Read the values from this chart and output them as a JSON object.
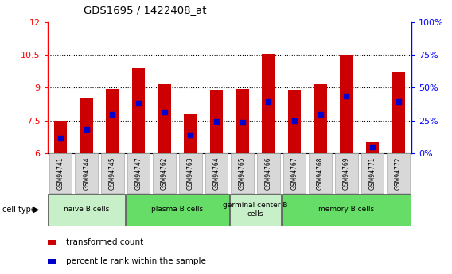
{
  "title": "GDS1695 / 1422408_at",
  "samples": [
    "GSM94741",
    "GSM94744",
    "GSM94745",
    "GSM94747",
    "GSM94762",
    "GSM94763",
    "GSM94764",
    "GSM94765",
    "GSM94766",
    "GSM94767",
    "GSM94768",
    "GSM94769",
    "GSM94771",
    "GSM94772"
  ],
  "bar_heights": [
    7.5,
    8.5,
    8.95,
    9.9,
    9.15,
    7.8,
    8.9,
    8.95,
    10.55,
    8.9,
    9.15,
    10.5,
    6.5,
    9.7
  ],
  "percentile_values": [
    6.7,
    7.1,
    7.8,
    8.3,
    7.9,
    6.85,
    7.45,
    7.42,
    8.35,
    7.5,
    7.8,
    8.6,
    6.3,
    8.35
  ],
  "bar_color": "#cc0000",
  "dot_color": "#0000cc",
  "bar_bottom": 6.0,
  "ylim_left": [
    6,
    12
  ],
  "ylim_right": [
    0,
    100
  ],
  "yticks_left": [
    6,
    7.5,
    9,
    10.5,
    12
  ],
  "yticks_right": [
    0,
    25,
    50,
    75,
    100
  ],
  "ytick_labels_left": [
    "6",
    "7.5",
    "9",
    "10.5",
    "12"
  ],
  "ytick_labels_right": [
    "0%",
    "25%",
    "50%",
    "75%",
    "100%"
  ],
  "dotted_lines": [
    7.5,
    9.0,
    10.5
  ],
  "groups": [
    {
      "label": "naive B cells",
      "start": 0,
      "end": 2,
      "color": "#c8f0c8"
    },
    {
      "label": "plasma B cells",
      "start": 3,
      "end": 6,
      "color": "#66dd66"
    },
    {
      "label": "germinal center B\ncells",
      "start": 7,
      "end": 8,
      "color": "#c8f0c8"
    },
    {
      "label": "memory B cells",
      "start": 9,
      "end": 13,
      "color": "#66dd66"
    }
  ],
  "cell_type_label": "cell type",
  "legend_items": [
    {
      "color": "#cc0000",
      "label": "transformed count"
    },
    {
      "color": "#0000cc",
      "label": "percentile rank within the sample"
    }
  ],
  "background_color": "#ffffff",
  "sample_box_color": "#d8d8d8",
  "sample_box_edge": "#aaaaaa"
}
